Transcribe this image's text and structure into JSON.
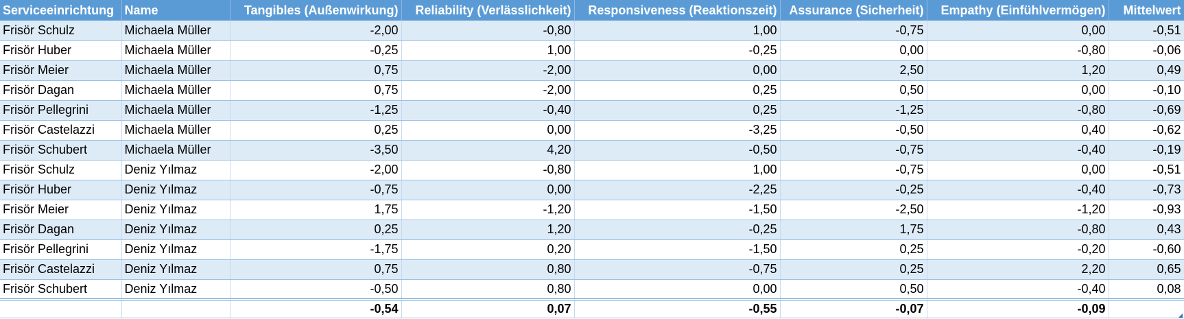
{
  "table": {
    "headers": [
      "Serviceeinrichtung",
      "Name",
      "Tangibles (Außenwirkung)",
      "Reliability (Verlässlichkeit)",
      "Responsiveness (Reaktionszeit)",
      "Assurance (Sicherheit)",
      "Empathy (Einfühlvermögen)",
      "Mittelwert"
    ],
    "rows": [
      [
        "Frisör Schulz",
        "Michaela Müller",
        "-2,00",
        "-0,80",
        "1,00",
        "-0,75",
        "0,00",
        "-0,51"
      ],
      [
        "Frisör Huber",
        "Michaela Müller",
        "-0,25",
        "1,00",
        "-0,25",
        "0,00",
        "-0,80",
        "-0,06"
      ],
      [
        "Frisör Meier",
        "Michaela Müller",
        "0,75",
        "-2,00",
        "0,00",
        "2,50",
        "1,20",
        "0,49"
      ],
      [
        "Frisör Dagan",
        "Michaela Müller",
        "0,75",
        "-2,00",
        "0,25",
        "0,50",
        "0,00",
        "-0,10"
      ],
      [
        "Frisör Pellegrini",
        "Michaela Müller",
        "-1,25",
        "-0,40",
        "0,25",
        "-1,25",
        "-0,80",
        "-0,69"
      ],
      [
        "Frisör Castelazzi",
        "Michaela Müller",
        "0,25",
        "0,00",
        "-3,25",
        "-0,50",
        "0,40",
        "-0,62"
      ],
      [
        "Frisör Schubert",
        "Michaela Müller",
        "-3,50",
        "4,20",
        "-0,50",
        "-0,75",
        "-0,40",
        "-0,19"
      ],
      [
        "Frisör Schulz",
        "Deniz Yılmaz",
        "-2,00",
        "-0,80",
        "1,00",
        "-0,75",
        "0,00",
        "-0,51"
      ],
      [
        "Frisör Huber",
        "Deniz Yılmaz",
        "-0,75",
        "0,00",
        "-2,25",
        "-0,25",
        "-0,40",
        "-0,73"
      ],
      [
        "Frisör Meier",
        "Deniz Yılmaz",
        "1,75",
        "-1,20",
        "-1,50",
        "-2,50",
        "-1,20",
        "-0,93"
      ],
      [
        "Frisör Dagan",
        "Deniz Yılmaz",
        "0,25",
        "1,20",
        "-0,25",
        "1,75",
        "-0,80",
        "0,43"
      ],
      [
        "Frisör Pellegrini",
        "Deniz Yılmaz",
        "-1,75",
        "0,20",
        "-1,50",
        "0,25",
        "-0,20",
        "-0,60"
      ],
      [
        "Frisör Castelazzi",
        "Deniz Yılmaz",
        "0,75",
        "0,80",
        "-0,75",
        "0,25",
        "2,20",
        "0,65"
      ],
      [
        "Frisör Schubert",
        "Deniz Yılmaz",
        "-0,50",
        "0,80",
        "0,00",
        "0,50",
        "-0,40",
        "0,08"
      ]
    ],
    "totals": [
      "",
      "",
      "-0,54",
      "0,07",
      "-0,55",
      "-0,07",
      "-0,09",
      ""
    ]
  },
  "colors": {
    "header_bg": "#5b9bd5",
    "header_text": "#ffffff",
    "band_bg": "#ddebf7",
    "row_border": "#9bc2e6"
  }
}
